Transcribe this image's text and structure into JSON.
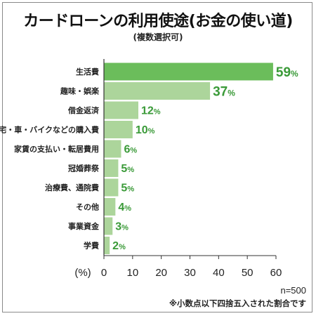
{
  "title": "カードローンの利用使途(お金の使い道)",
  "subtitle": "(複数選択可)",
  "footnote_n": "n=500",
  "footnote_rounding": "※小数点以下四捨五入された割合です",
  "colors": {
    "top_bar": "#6bbd5b",
    "bar": "#acd59b",
    "value_text": "#3a9a38"
  },
  "chart_data": {
    "type": "bar",
    "orientation": "horizontal",
    "categories": [
      "生活費",
      "趣味・娯楽",
      "借金返済",
      "住宅・車・バイクなどの購入費",
      "家賃の支払い・転居費用",
      "冠婚葬祭",
      "治療費、通院費",
      "その他",
      "事業資金",
      "学費"
    ],
    "values": [
      59,
      37,
      12,
      10,
      6,
      5,
      5,
      4,
      3,
      2
    ],
    "value_suffix": "%",
    "xlabel": "(%)",
    "xlim": [
      0,
      60
    ],
    "xticks": [
      0,
      10,
      20,
      30,
      40,
      50,
      60
    ],
    "grid": false
  }
}
